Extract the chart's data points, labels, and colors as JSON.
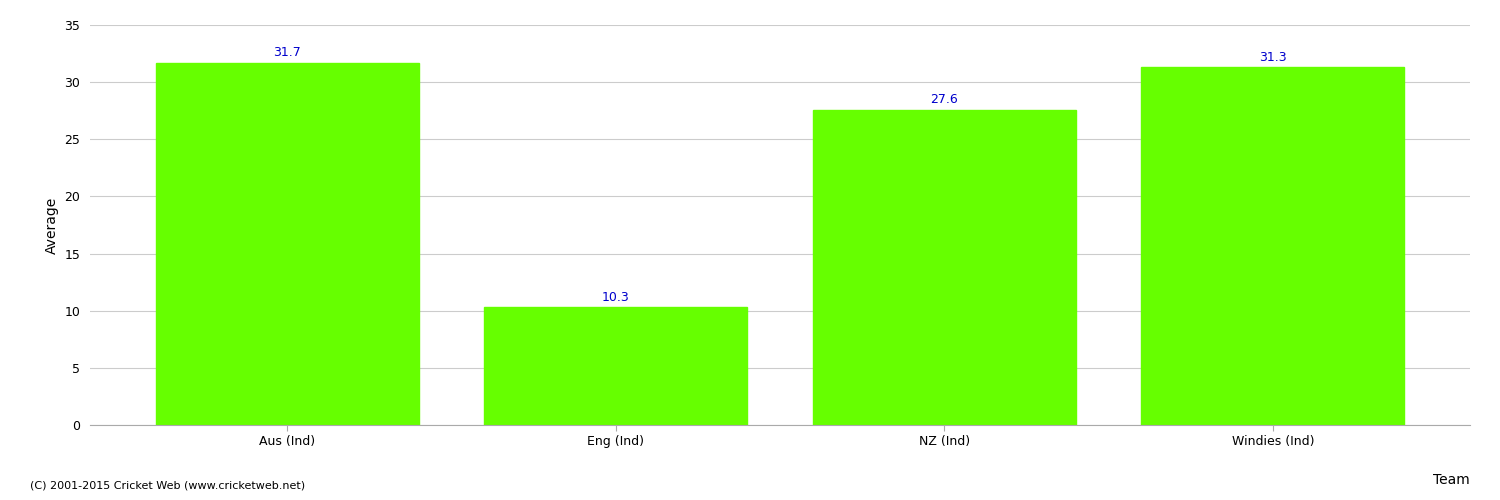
{
  "categories": [
    "Aus (Ind)",
    "Eng (Ind)",
    "NZ (Ind)",
    "Windies (Ind)"
  ],
  "values": [
    31.7,
    10.3,
    27.6,
    31.3
  ],
  "bar_color": "#66ff00",
  "bar_edge_color": "#66ff00",
  "value_color": "#0000cc",
  "xlabel": "Team",
  "ylabel": "Average",
  "ylim": [
    0,
    35
  ],
  "yticks": [
    0,
    5,
    10,
    15,
    20,
    25,
    30,
    35
  ],
  "grid_color": "#cccccc",
  "background_color": "#ffffff",
  "footnote": "(C) 2001-2015 Cricket Web (www.cricketweb.net)",
  "value_fontsize": 9,
  "label_fontsize": 9,
  "axis_label_fontsize": 10,
  "bar_width": 0.8
}
